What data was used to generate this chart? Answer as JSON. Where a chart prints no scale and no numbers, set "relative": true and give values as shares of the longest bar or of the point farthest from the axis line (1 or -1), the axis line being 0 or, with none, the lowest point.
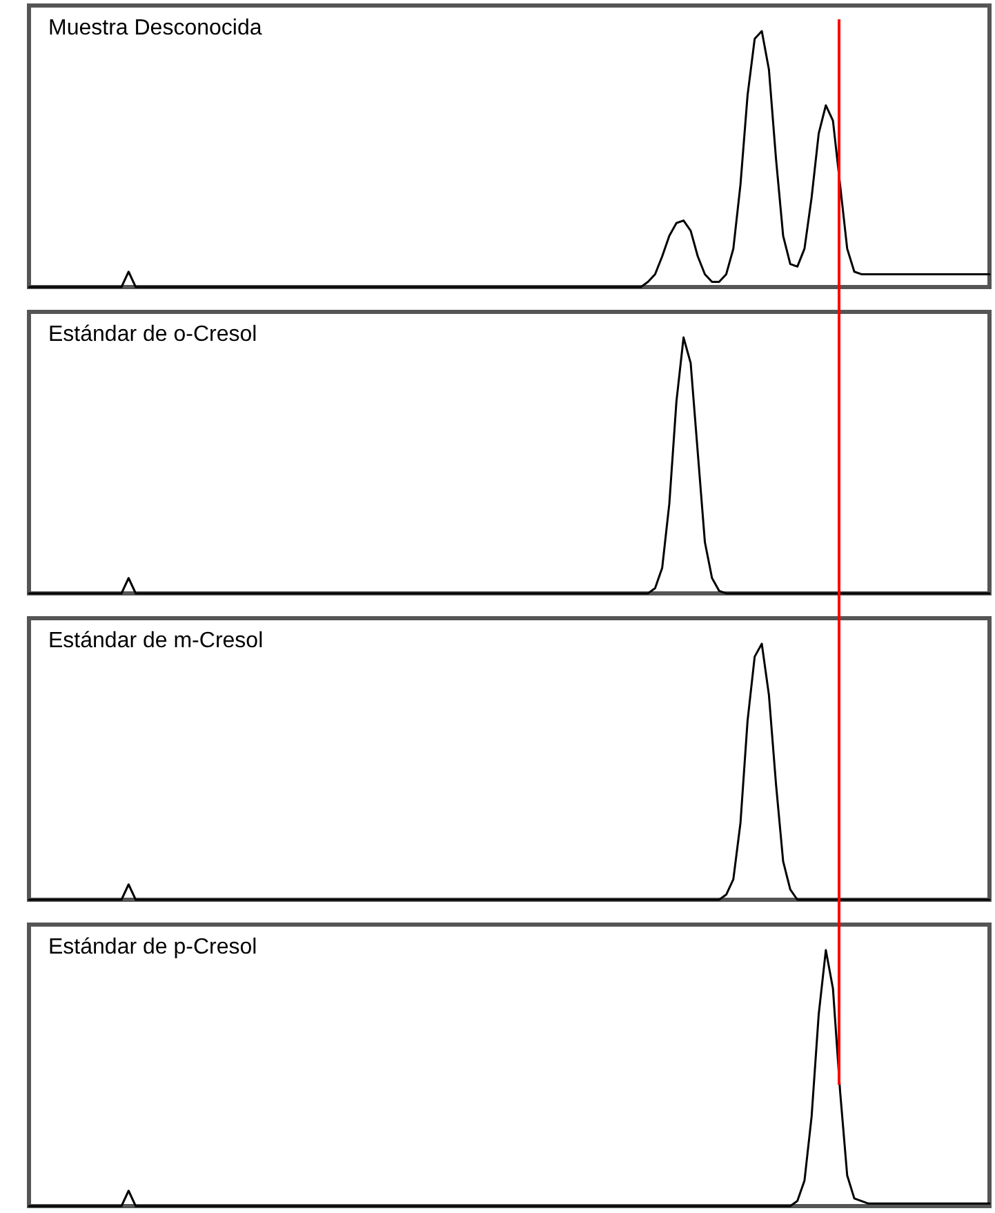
{
  "chart_data": [
    {
      "type": "line",
      "title": "Muestra Desconocida",
      "relative": true,
      "tick_labels": false,
      "marker": "none",
      "line_style": "solid",
      "categories": [
        null,
        null,
        null,
        null,
        null,
        null,
        null,
        null,
        null,
        null,
        null,
        null,
        null,
        null,
        null,
        null,
        null,
        null,
        null,
        null,
        null,
        null,
        null,
        null,
        null,
        null,
        null,
        null,
        null,
        null,
        null,
        null,
        null,
        null,
        null,
        null,
        null,
        null,
        null,
        null,
        null,
        null,
        null,
        null,
        null,
        null,
        null,
        null,
        null,
        null,
        null,
        null,
        null,
        null,
        null,
        null,
        null,
        null,
        null,
        null,
        null,
        null,
        null,
        null,
        null,
        null,
        null,
        null,
        null,
        null,
        null,
        null,
        null,
        null,
        null,
        null,
        null,
        null,
        null,
        null,
        null,
        null,
        null,
        null,
        null,
        null,
        null,
        null,
        null,
        null,
        null,
        null,
        null,
        null,
        null,
        null,
        null,
        null,
        null,
        null,
        null,
        null,
        null,
        null,
        null,
        null,
        null,
        null,
        null,
        null,
        null,
        null,
        null,
        null,
        null,
        null,
        null,
        null,
        null,
        null,
        null,
        null,
        null,
        null,
        null,
        null,
        null,
        null,
        null,
        null,
        null,
        null,
        null,
        null,
        null,
        null
      ],
      "series": [
        {
          "color": "#000000",
          "values": [
            0,
            0,
            0,
            0,
            0,
            0,
            0,
            0,
            0,
            0,
            0,
            0,
            0,
            0,
            0.06,
            0,
            0,
            0,
            0,
            0,
            0,
            0,
            0,
            0,
            0,
            0,
            0,
            0,
            0,
            0,
            0,
            0,
            0,
            0,
            0,
            0,
            0,
            0,
            0,
            0,
            0,
            0,
            0,
            0,
            0,
            0,
            0,
            0,
            0,
            0,
            0,
            0,
            0,
            0,
            0,
            0,
            0,
            0,
            0,
            0,
            0,
            0,
            0,
            0,
            0,
            0,
            0,
            0,
            0,
            0,
            0,
            0,
            0,
            0,
            0,
            0,
            0,
            0,
            0,
            0,
            0,
            0,
            0,
            0,
            0,
            0,
            0,
            0.02,
            0.05,
            0.12,
            0.2,
            0.25,
            0.26,
            0.22,
            0.12,
            0.05,
            0.02,
            0.02,
            0.05,
            0.15,
            0.4,
            0.75,
            0.97,
            1,
            0.85,
            0.5,
            0.2,
            0.09,
            0.08,
            0.15,
            0.35,
            0.6,
            0.71,
            0.65,
            0.4,
            0.15,
            0.06,
            0.05,
            0.05,
            0.05,
            0.05,
            0.05,
            0.05,
            0.05,
            0.05,
            0.05,
            0.05,
            0.05,
            0.05,
            0.05,
            0.05,
            0.05,
            0.05,
            0.05,
            0.05,
            0.05
          ]
        }
      ]
    },
    {
      "type": "line",
      "title": "Estándar de o-Cresol",
      "relative": true,
      "tick_labels": false,
      "marker": "none",
      "line_style": "solid",
      "categories": [
        null,
        null,
        null,
        null,
        null,
        null,
        null,
        null,
        null,
        null,
        null,
        null,
        null,
        null,
        null,
        null,
        null,
        null,
        null,
        null,
        null,
        null,
        null,
        null,
        null,
        null,
        null,
        null,
        null,
        null,
        null,
        null,
        null,
        null,
        null,
        null,
        null,
        null,
        null,
        null,
        null,
        null,
        null,
        null,
        null,
        null,
        null,
        null,
        null,
        null,
        null,
        null,
        null,
        null,
        null,
        null,
        null,
        null,
        null,
        null,
        null,
        null,
        null,
        null,
        null,
        null,
        null,
        null,
        null,
        null,
        null,
        null,
        null,
        null,
        null,
        null,
        null,
        null,
        null,
        null,
        null,
        null,
        null,
        null,
        null,
        null,
        null,
        null,
        null,
        null,
        null,
        null,
        null,
        null,
        null,
        null,
        null,
        null,
        null,
        null,
        null,
        null,
        null,
        null,
        null,
        null,
        null,
        null,
        null,
        null,
        null,
        null,
        null,
        null,
        null,
        null,
        null,
        null,
        null,
        null,
        null,
        null,
        null,
        null,
        null,
        null,
        null,
        null,
        null,
        null,
        null,
        null,
        null,
        null,
        null,
        null
      ],
      "series": [
        {
          "color": "#000000",
          "values": [
            0,
            0,
            0,
            0,
            0,
            0,
            0,
            0,
            0,
            0,
            0,
            0,
            0,
            0,
            0.06,
            0,
            0,
            0,
            0,
            0,
            0,
            0,
            0,
            0,
            0,
            0,
            0,
            0,
            0,
            0,
            0,
            0,
            0,
            0,
            0,
            0,
            0,
            0,
            0,
            0,
            0,
            0,
            0,
            0,
            0,
            0,
            0,
            0,
            0,
            0,
            0,
            0,
            0,
            0,
            0,
            0,
            0,
            0,
            0,
            0,
            0,
            0,
            0,
            0,
            0,
            0,
            0,
            0,
            0,
            0,
            0,
            0,
            0,
            0,
            0,
            0,
            0,
            0,
            0,
            0,
            0,
            0,
            0,
            0,
            0,
            0,
            0,
            0,
            0.02,
            0.1,
            0.35,
            0.75,
            1,
            0.9,
            0.55,
            0.2,
            0.06,
            0.01,
            0,
            0,
            0,
            0,
            0,
            0,
            0,
            0,
            0,
            0,
            0,
            0,
            0,
            0,
            0,
            0,
            0,
            0,
            0,
            0,
            0,
            0,
            0,
            0,
            0,
            0,
            0,
            0,
            0,
            0,
            0,
            0,
            0,
            0,
            0,
            0,
            0,
            0
          ]
        }
      ]
    },
    {
      "type": "line",
      "title": "Estándar de m-Cresol",
      "relative": true,
      "tick_labels": false,
      "marker": "none",
      "line_style": "solid",
      "categories": [
        null,
        null,
        null,
        null,
        null,
        null,
        null,
        null,
        null,
        null,
        null,
        null,
        null,
        null,
        null,
        null,
        null,
        null,
        null,
        null,
        null,
        null,
        null,
        null,
        null,
        null,
        null,
        null,
        null,
        null,
        null,
        null,
        null,
        null,
        null,
        null,
        null,
        null,
        null,
        null,
        null,
        null,
        null,
        null,
        null,
        null,
        null,
        null,
        null,
        null,
        null,
        null,
        null,
        null,
        null,
        null,
        null,
        null,
        null,
        null,
        null,
        null,
        null,
        null,
        null,
        null,
        null,
        null,
        null,
        null,
        null,
        null,
        null,
        null,
        null,
        null,
        null,
        null,
        null,
        null,
        null,
        null,
        null,
        null,
        null,
        null,
        null,
        null,
        null,
        null,
        null,
        null,
        null,
        null,
        null,
        null,
        null,
        null,
        null,
        null,
        null,
        null,
        null,
        null,
        null,
        null,
        null,
        null,
        null,
        null,
        null,
        null,
        null,
        null,
        null,
        null,
        null,
        null,
        null,
        null,
        null,
        null,
        null,
        null,
        null,
        null,
        null,
        null,
        null,
        null,
        null,
        null,
        null,
        null,
        null,
        null
      ],
      "series": [
        {
          "color": "#000000",
          "values": [
            0,
            0,
            0,
            0,
            0,
            0,
            0,
            0,
            0,
            0,
            0,
            0,
            0,
            0,
            0.06,
            0,
            0,
            0,
            0,
            0,
            0,
            0,
            0,
            0,
            0,
            0,
            0,
            0,
            0,
            0,
            0,
            0,
            0,
            0,
            0,
            0,
            0,
            0,
            0,
            0,
            0,
            0,
            0,
            0,
            0,
            0,
            0,
            0,
            0,
            0,
            0,
            0,
            0,
            0,
            0,
            0,
            0,
            0,
            0,
            0,
            0,
            0,
            0,
            0,
            0,
            0,
            0,
            0,
            0,
            0,
            0,
            0,
            0,
            0,
            0,
            0,
            0,
            0,
            0,
            0,
            0,
            0,
            0,
            0,
            0,
            0,
            0,
            0,
            0,
            0,
            0,
            0,
            0,
            0,
            0,
            0,
            0,
            0,
            0.02,
            0.08,
            0.3,
            0.7,
            0.95,
            1,
            0.8,
            0.45,
            0.15,
            0.04,
            0,
            0,
            0,
            0,
            0,
            0,
            0,
            0,
            0,
            0,
            0,
            0,
            0,
            0,
            0,
            0,
            0,
            0,
            0,
            0,
            0,
            0,
            0,
            0,
            0,
            0,
            0,
            0
          ]
        }
      ]
    },
    {
      "type": "line",
      "title": "Estándar de p-Cresol",
      "relative": true,
      "tick_labels": false,
      "marker": "none",
      "line_style": "solid",
      "categories": [
        null,
        null,
        null,
        null,
        null,
        null,
        null,
        null,
        null,
        null,
        null,
        null,
        null,
        null,
        null,
        null,
        null,
        null,
        null,
        null,
        null,
        null,
        null,
        null,
        null,
        null,
        null,
        null,
        null,
        null,
        null,
        null,
        null,
        null,
        null,
        null,
        null,
        null,
        null,
        null,
        null,
        null,
        null,
        null,
        null,
        null,
        null,
        null,
        null,
        null,
        null,
        null,
        null,
        null,
        null,
        null,
        null,
        null,
        null,
        null,
        null,
        null,
        null,
        null,
        null,
        null,
        null,
        null,
        null,
        null,
        null,
        null,
        null,
        null,
        null,
        null,
        null,
        null,
        null,
        null,
        null,
        null,
        null,
        null,
        null,
        null,
        null,
        null,
        null,
        null,
        null,
        null,
        null,
        null,
        null,
        null,
        null,
        null,
        null,
        null,
        null,
        null,
        null,
        null,
        null,
        null,
        null,
        null,
        null,
        null,
        null,
        null,
        null,
        null,
        null,
        null,
        null,
        null,
        null,
        null,
        null,
        null,
        null,
        null,
        null,
        null,
        null,
        null,
        null,
        null,
        null,
        null,
        null,
        null,
        null,
        null
      ],
      "series": [
        {
          "color": "#000000",
          "values": [
            0,
            0,
            0,
            0,
            0,
            0,
            0,
            0,
            0,
            0,
            0,
            0,
            0,
            0,
            0.06,
            0,
            0,
            0,
            0,
            0,
            0,
            0,
            0,
            0,
            0,
            0,
            0,
            0,
            0,
            0,
            0,
            0,
            0,
            0,
            0,
            0,
            0,
            0,
            0,
            0,
            0,
            0,
            0,
            0,
            0,
            0,
            0,
            0,
            0,
            0,
            0,
            0,
            0,
            0,
            0,
            0,
            0,
            0,
            0,
            0,
            0,
            0,
            0,
            0,
            0,
            0,
            0,
            0,
            0,
            0,
            0,
            0,
            0,
            0,
            0,
            0,
            0,
            0,
            0,
            0,
            0,
            0,
            0,
            0,
            0,
            0,
            0,
            0,
            0,
            0,
            0,
            0,
            0,
            0,
            0,
            0,
            0,
            0,
            0,
            0,
            0,
            0,
            0,
            0,
            0,
            0,
            0,
            0,
            0.02,
            0.1,
            0.35,
            0.75,
            1,
            0.85,
            0.45,
            0.12,
            0.03,
            0.02,
            0.01,
            0.01,
            0.01,
            0.01,
            0.01,
            0.01,
            0.01,
            0.01,
            0.01,
            0.01,
            0.01,
            0.01,
            0.01,
            0.01,
            0.01,
            0.01,
            0.01,
            0.01
          ]
        }
      ]
    }
  ]
}
